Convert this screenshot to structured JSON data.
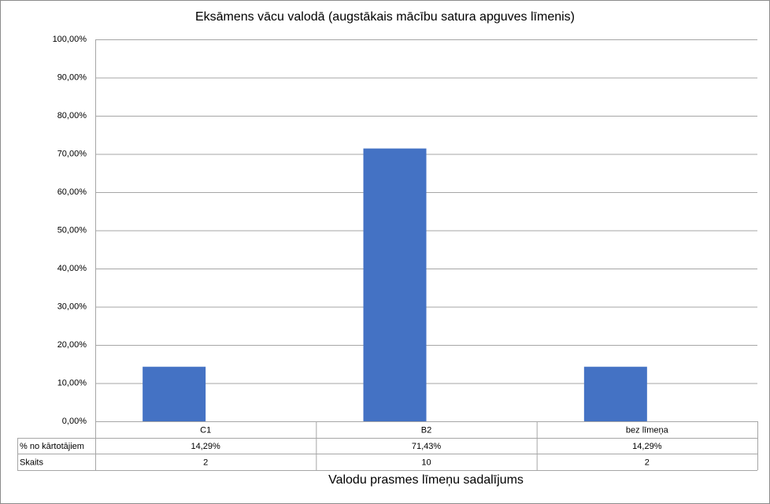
{
  "chart_data": {
    "type": "bar",
    "title": "Eksāmens vācu valodā (augstākais mācību satura apguves līmenis)",
    "x_label": "Valodu prasmes līmeņu sadalījums",
    "categories": [
      "C1",
      "B2",
      "bez līmeņa"
    ],
    "series": [
      {
        "name": "% no kārtotājiem",
        "color": "#4472c4",
        "values": [
          14.29,
          71.43,
          14.29
        ],
        "value_labels": [
          "14,29%",
          "71,43%",
          "14,29%"
        ]
      }
    ],
    "table_rows": [
      {
        "name": "Skaits",
        "values": [
          2,
          10,
          2
        ]
      }
    ],
    "ylim": [
      0,
      100
    ],
    "yticks": [
      {
        "value": 0,
        "label": "0,00%"
      },
      {
        "value": 10,
        "label": "10,00%"
      },
      {
        "value": 20,
        "label": "20,00%"
      },
      {
        "value": 30,
        "label": "30,00%"
      },
      {
        "value": 40,
        "label": "40,00%"
      },
      {
        "value": 50,
        "label": "50,00%"
      },
      {
        "value": 60,
        "label": "60,00%"
      },
      {
        "value": 70,
        "label": "70,00%"
      },
      {
        "value": 80,
        "label": "80,00%"
      },
      {
        "value": 90,
        "label": "90,00%"
      },
      {
        "value": 100,
        "label": "100,00%"
      }
    ],
    "grid": true
  }
}
